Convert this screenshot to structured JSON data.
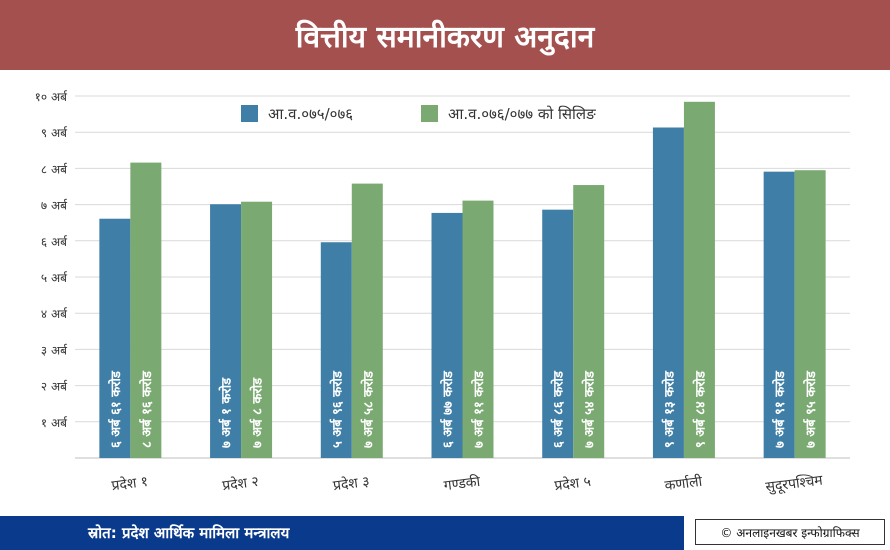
{
  "header": {
    "title": "वित्तीय समानीकरण अनुदान"
  },
  "footer": {
    "source": "स्रोत: प्रदेश आर्थिक मामिला मन्त्रालय",
    "credit": "© अनलाइनखबर इन्फोग्राफिक्स"
  },
  "colors": {
    "series1": "#3f7fa7",
    "series2": "#7aaa72",
    "title_bg": "#a4504e",
    "footer_bg": "#0a3a8c"
  },
  "chart_data": {
    "type": "bar",
    "title": "वित्तीय समानीकरण अनुदान",
    "categories": [
      "प्रदेश १",
      "प्रदेश २",
      "प्रदेश ३",
      "गण्डकी",
      "प्रदेश ५",
      "कर्णाली",
      "सुदूरपश्चिम"
    ],
    "series": [
      {
        "name": "आ.व.०७५/०७६",
        "values": [
          6.61,
          7.01,
          5.96,
          6.77,
          6.86,
          9.13,
          7.91
        ],
        "labels": [
          "६ अर्ब ६१ करोड",
          "७ अर्ब १ करोड",
          "५ अर्ब ९६ करोड",
          "६ अर्ब ७७ करोड",
          "६ अर्ब ८६ करोड",
          "९ अर्ब १३ करोड",
          "७ अर्ब ९१ करोड"
        ]
      },
      {
        "name": "आ.व.०७६/०७७ को सिलिङ",
        "values": [
          8.16,
          7.08,
          7.58,
          7.11,
          7.54,
          9.84,
          7.95
        ],
        "labels": [
          "८ अर्ब १६ करोड",
          "७ अर्ब ८ करोड",
          "७ अर्ब ५८ करोड",
          "७ अर्ब ११ करोड",
          "७ अर्ब ५४ करोड",
          "९ अर्ब ८४ करोड",
          "७ अर्ब ९५ करोड"
        ]
      }
    ],
    "yticks": [
      "१ अर्ब",
      "२ अर्ब",
      "३ अर्ब",
      "४ अर्ब",
      "५ अर्ब",
      "६ अर्ब",
      "७ अर्ब",
      "८ अर्ब",
      "९ अर्ब",
      "१० अर्ब"
    ],
    "ylim": [
      0,
      10
    ],
    "grid": true,
    "legend_position": "top-left"
  }
}
